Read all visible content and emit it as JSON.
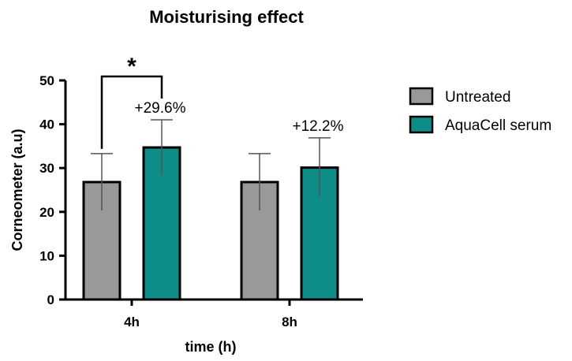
{
  "chart_data": {
    "type": "bar",
    "title": "Moisturising effect",
    "xlabel": "time (h)",
    "ylabel": "Corneometer (a.u)",
    "ylim": [
      0,
      50
    ],
    "yticks": [
      0,
      10,
      20,
      30,
      40,
      50
    ],
    "categories": [
      "4h",
      "8h"
    ],
    "series": [
      {
        "name": "Untreated",
        "values": [
          26.8,
          26.8
        ],
        "errors": [
          6.5,
          6.5
        ],
        "color": "#999999"
      },
      {
        "name": "AquaCell serum",
        "values": [
          34.7,
          30.1
        ],
        "errors": [
          6.3,
          6.8
        ],
        "color": "#0e8c87"
      }
    ],
    "annotations": [
      {
        "category": "4h",
        "text": "+29.6%"
      },
      {
        "category": "8h",
        "text": "+12.2%"
      }
    ],
    "significance": {
      "category": "4h",
      "symbol": "*"
    },
    "legend": "right",
    "grid": false
  }
}
